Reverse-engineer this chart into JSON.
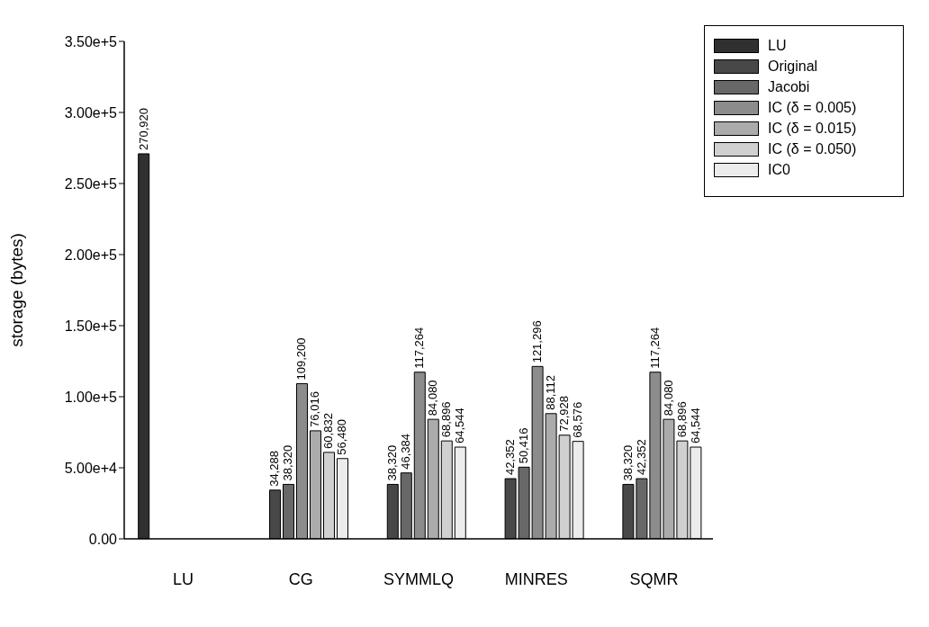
{
  "chart_data": {
    "type": "bar",
    "ylabel": "storage (bytes)",
    "categories": [
      "LU",
      "CG",
      "SYMMLQ",
      "MINRES",
      "SQMR"
    ],
    "series": [
      {
        "name": "LU",
        "color": "#303030",
        "values": [
          270920,
          null,
          null,
          null,
          null
        ],
        "value_labels": [
          "270,920",
          null,
          null,
          null,
          null
        ]
      },
      {
        "name": "Original",
        "color": "#484848",
        "values": [
          null,
          34288,
          38320,
          42352,
          38320
        ],
        "value_labels": [
          null,
          "34,288",
          "38,320",
          "42,352",
          "38,320"
        ]
      },
      {
        "name": "Jacobi",
        "color": "#686868",
        "values": [
          null,
          38320,
          46384,
          50416,
          42352
        ],
        "value_labels": [
          null,
          "38,320",
          "46,384",
          "50,416",
          "42,352"
        ]
      },
      {
        "name": "IC (δ = 0.005)",
        "color": "#8c8c8c",
        "values": [
          null,
          109200,
          117264,
          121296,
          117264
        ],
        "value_labels": [
          null,
          "109,200",
          "117,264",
          "121,296",
          "117,264"
        ]
      },
      {
        "name": "IC (δ = 0.015)",
        "color": "#ababab",
        "values": [
          null,
          76016,
          84080,
          88112,
          84080
        ],
        "value_labels": [
          null,
          "76,016",
          "84,080",
          "88,112",
          "84,080"
        ]
      },
      {
        "name": "IC (δ = 0.050)",
        "color": "#d0d0d0",
        "values": [
          null,
          60832,
          68896,
          72928,
          68896
        ],
        "value_labels": [
          null,
          "60,832",
          "68,896",
          "72,928",
          "68,896"
        ]
      },
      {
        "name": "IC0",
        "color": "#ececec",
        "values": [
          null,
          56480,
          64544,
          68576,
          64544
        ],
        "value_labels": [
          null,
          "56,480",
          "64,544",
          "68,576",
          "64,544"
        ]
      }
    ],
    "ylim": [
      0,
      350000
    ],
    "yticks": [
      {
        "value": 0,
        "label": "0.00"
      },
      {
        "value": 50000,
        "label": "5.00e+4"
      },
      {
        "value": 100000,
        "label": "1.00e+5"
      },
      {
        "value": 150000,
        "label": "1.50e+5"
      },
      {
        "value": 200000,
        "label": "2.00e+5"
      },
      {
        "value": 250000,
        "label": "2.50e+5"
      },
      {
        "value": 300000,
        "label": "3.00e+5"
      },
      {
        "value": 350000,
        "label": "3.50e+5"
      }
    ],
    "grid": false,
    "legend": "top right"
  }
}
